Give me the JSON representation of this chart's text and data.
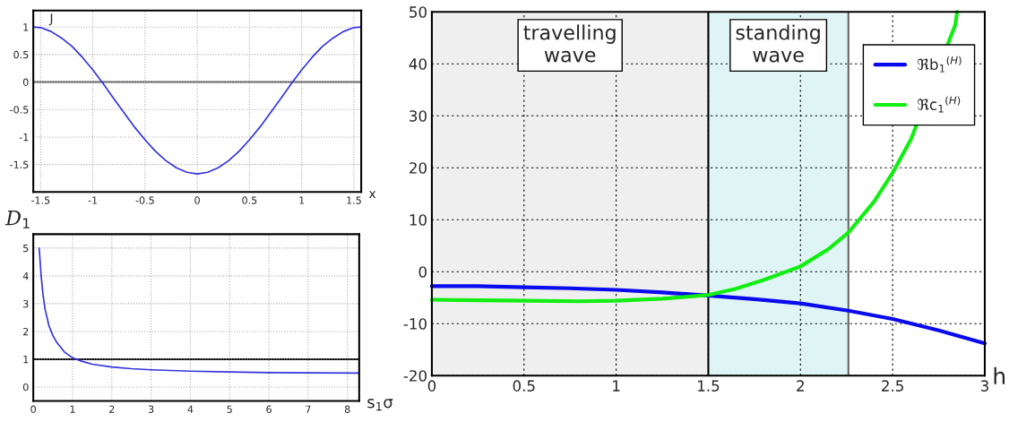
{
  "chart_data": [
    {
      "type": "line",
      "xlabel": "x",
      "ylabel": "J",
      "xlim": [
        -1.57,
        1.57
      ],
      "ylim": [
        -2,
        1.3
      ],
      "xticks": [
        -1.5,
        -1,
        -0.5,
        0,
        0.5,
        1,
        1.5
      ],
      "yticks": [
        -1.5,
        -1,
        -0.5,
        0,
        0.5,
        1
      ],
      "grid": true,
      "line_style": "solid",
      "marker": "none",
      "ref_lines": [
        {
          "axis": "y",
          "value": 0,
          "color": "#555555"
        }
      ],
      "series": [
        {
          "color": "#3333dd",
          "x": [
            -1.57,
            -1.5,
            -1.4,
            -1.3,
            -1.2,
            -1.1,
            -1.0,
            -0.9,
            -0.8,
            -0.7,
            -0.6,
            -0.5,
            -0.4,
            -0.3,
            -0.2,
            -0.1,
            0,
            0.1,
            0.2,
            0.3,
            0.4,
            0.5,
            0.6,
            0.7,
            0.8,
            0.9,
            1.0,
            1.1,
            1.2,
            1.3,
            1.4,
            1.5,
            1.57
          ],
          "values": [
            1.0,
            0.99,
            0.92,
            0.8,
            0.65,
            0.45,
            0.22,
            -0.03,
            -0.3,
            -0.56,
            -0.82,
            -1.05,
            -1.26,
            -1.43,
            -1.56,
            -1.64,
            -1.67,
            -1.64,
            -1.56,
            -1.43,
            -1.26,
            -1.05,
            -0.82,
            -0.56,
            -0.3,
            -0.03,
            0.22,
            0.45,
            0.65,
            0.8,
            0.92,
            0.99,
            1.0
          ]
        }
      ]
    },
    {
      "type": "line",
      "xlabel": "s$_{1}$σ",
      "ylabel": "D$_{1}$",
      "xlim": [
        0,
        8.3
      ],
      "ylim": [
        -0.5,
        5.5
      ],
      "xticks": [
        0,
        1,
        2,
        3,
        4,
        5,
        6,
        7,
        8
      ],
      "yticks": [
        0,
        1,
        2,
        3,
        4,
        5
      ],
      "grid": true,
      "line_style": "solid",
      "marker": "none",
      "ref_lines": [
        {
          "axis": "y",
          "value": 1,
          "color": "#000000"
        }
      ],
      "series": [
        {
          "color": "#3333dd",
          "x": [
            0.15,
            0.2,
            0.25,
            0.3,
            0.4,
            0.5,
            0.6,
            0.8,
            1.0,
            1.25,
            1.5,
            2,
            2.5,
            3,
            4,
            5,
            6,
            7,
            8.3
          ],
          "values": [
            5.0,
            4.0,
            3.3,
            2.8,
            2.2,
            1.85,
            1.6,
            1.25,
            1.05,
            0.92,
            0.82,
            0.72,
            0.66,
            0.62,
            0.57,
            0.54,
            0.52,
            0.51,
            0.5
          ]
        }
      ]
    },
    {
      "type": "line",
      "xlabel": "h",
      "xlim": [
        0,
        3
      ],
      "ylim": [
        -20,
        50
      ],
      "xticks": [
        0,
        0.5,
        1,
        1.5,
        2,
        2.5,
        3
      ],
      "yticks": [
        -20,
        -10,
        0,
        10,
        20,
        30,
        40,
        50
      ],
      "grid": true,
      "line_style": "solid",
      "marker": "none",
      "legend": "top right",
      "bands": [
        {
          "axis": "x",
          "from": 0,
          "to": 1.5,
          "label": "travelling\nwave",
          "color": "#efefef"
        },
        {
          "axis": "x",
          "from": 1.5,
          "to": 2.26,
          "label": "standing\nwave",
          "color": "#dff5f5"
        }
      ],
      "ref_lines": [
        {
          "axis": "x",
          "value": 1.5,
          "color": "#000000"
        },
        {
          "axis": "x",
          "value": 2.26,
          "color": "#666666"
        }
      ],
      "series": [
        {
          "name": "ℜb$_{1}$$^{(H)}$",
          "color": "#0a0aee",
          "x": [
            0,
            0.25,
            0.5,
            0.75,
            1.0,
            1.25,
            1.5,
            1.75,
            2.0,
            2.26,
            2.5,
            2.75,
            3.0
          ],
          "values": [
            -2.8,
            -2.8,
            -3.0,
            -3.2,
            -3.5,
            -4.0,
            -4.6,
            -5.3,
            -6.1,
            -7.5,
            -9.1,
            -11.3,
            -13.8
          ]
        },
        {
          "name": "ℜc$_{1}$$^{(H)}$",
          "color": "#11ee11",
          "x": [
            0,
            0.25,
            0.5,
            0.8,
            1.0,
            1.25,
            1.5,
            1.65,
            1.8,
            2.0,
            2.15,
            2.26,
            2.4,
            2.5,
            2.6,
            2.7,
            2.8,
            2.84,
            2.85
          ],
          "values": [
            -5.4,
            -5.5,
            -5.6,
            -5.7,
            -5.6,
            -5.2,
            -4.5,
            -3.3,
            -1.6,
            1.0,
            4.3,
            7.5,
            13.5,
            19,
            25.5,
            null,
            null,
            47.5,
            50
          ]
        }
      ]
    }
  ]
}
